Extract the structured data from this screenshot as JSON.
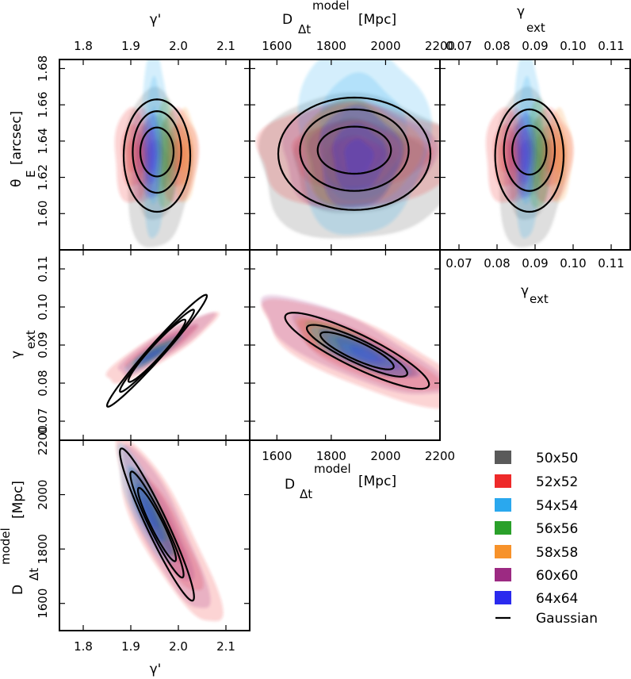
{
  "chart_data": {
    "type": "corner-contour",
    "parameters": [
      {
        "key": "gp",
        "label": "γ'",
        "ticks": [
          1.8,
          1.9,
          2.0,
          2.1
        ],
        "tick_labels": [
          "1.8",
          "1.9",
          "2.0",
          "2.1"
        ],
        "range": [
          1.75,
          2.15
        ]
      },
      {
        "key": "d",
        "label_main": "D",
        "label_sup": "model",
        "label_sub": "Δt",
        "label_unit": "[Mpc]",
        "ticks": [
          1600,
          1800,
          2000,
          2200
        ],
        "tick_labels": [
          "1600",
          "1800",
          "2000",
          "2200"
        ],
        "range": [
          1500,
          2200
        ]
      },
      {
        "key": "gx",
        "label_main": "γ",
        "label_sub": "ext",
        "ticks": [
          0.07,
          0.08,
          0.09,
          0.1,
          0.11
        ],
        "tick_labels": [
          "0.07",
          "0.08",
          "0.09",
          "0.10",
          "0.11"
        ],
        "range": [
          0.065,
          0.115
        ]
      },
      {
        "key": "th",
        "label_main": "θ",
        "label_sub": "E",
        "label_unit": "[arcsec]",
        "ticks": [
          1.6,
          1.62,
          1.64,
          1.66,
          1.68
        ],
        "tick_labels": [
          "1.60",
          "1.62",
          "1.64",
          "1.66",
          "1.68"
        ],
        "range": [
          1.58,
          1.685
        ]
      }
    ],
    "series": [
      {
        "name": "50x50",
        "color": "#5a5a5a"
      },
      {
        "name": "52x52",
        "color": "#ee2a2a"
      },
      {
        "name": "54x54",
        "color": "#2aa8ee"
      },
      {
        "name": "56x56",
        "color": "#2aa02a"
      },
      {
        "name": "58x58",
        "color": "#f7922a"
      },
      {
        "name": "60x60",
        "color": "#9c2a82"
      },
      {
        "name": "64x64",
        "color": "#2a2aee"
      }
    ],
    "gaussian": {
      "name": "Gaussian",
      "color": "#000000"
    },
    "panels": [
      {
        "x": "gp",
        "y": "th",
        "col": 0,
        "row": 0,
        "blobs": [
          {
            "s": 0,
            "cx": 1.955,
            "cy": 1.625,
            "sx": 0.035,
            "sy": 0.022,
            "r": 0
          },
          {
            "s": 1,
            "cx": 1.905,
            "cy": 1.632,
            "sx": 0.02,
            "sy": 0.013,
            "r": 0
          },
          {
            "s": 1,
            "cx": 2.0,
            "cy": 1.632,
            "sx": 0.02,
            "sy": 0.013,
            "r": 0
          },
          {
            "s": 2,
            "cx": 1.95,
            "cy": 1.64,
            "sx": 0.013,
            "sy": 0.027,
            "r": 0
          },
          {
            "s": 3,
            "cx": 1.975,
            "cy": 1.633,
            "sx": 0.012,
            "sy": 0.015,
            "r": 0
          },
          {
            "s": 4,
            "cx": 2.015,
            "cy": 1.632,
            "sx": 0.012,
            "sy": 0.013,
            "r": 0
          },
          {
            "s": 5,
            "cx": 1.925,
            "cy": 1.632,
            "sx": 0.013,
            "sy": 0.013,
            "r": 0
          },
          {
            "s": 6,
            "cx": 1.945,
            "cy": 1.632,
            "sx": 0.01,
            "sy": 0.012,
            "r": 0
          }
        ],
        "ellipses": [
          {
            "cx": 1.955,
            "cy": 1.634,
            "sx": 0.035,
            "sy": 0.0135,
            "r": 0
          },
          {
            "cx": 1.955,
            "cy": 1.634,
            "sx": 0.051,
            "sy": 0.0225,
            "r": 0
          },
          {
            "cx": 1.955,
            "cy": 1.632,
            "sx": 0.07,
            "sy": 0.031,
            "r": 0
          }
        ]
      },
      {
        "x": "d",
        "y": "th",
        "col": 1,
        "row": 0,
        "blobs": [
          {
            "s": 0,
            "cx": 1900,
            "cy": 1.626,
            "sx": 190,
            "sy": 0.02,
            "r": 0
          },
          {
            "s": 1,
            "cx": 1900,
            "cy": 1.632,
            "sx": 195,
            "sy": 0.014,
            "r": 0
          },
          {
            "s": 2,
            "cx": 1910,
            "cy": 1.642,
            "sx": 120,
            "sy": 0.027,
            "r": 0
          },
          {
            "s": 3,
            "cx": 1880,
            "cy": 1.633,
            "sx": 90,
            "sy": 0.015,
            "r": 0
          },
          {
            "s": 4,
            "cx": 1900,
            "cy": 1.633,
            "sx": 110,
            "sy": 0.014,
            "r": 0
          },
          {
            "s": 5,
            "cx": 1890,
            "cy": 1.632,
            "sx": 140,
            "sy": 0.015,
            "r": 0
          },
          {
            "s": 6,
            "cx": 1900,
            "cy": 1.631,
            "sx": 75,
            "sy": 0.014,
            "r": 0
          }
        ],
        "ellipses": [
          {
            "cx": 1885,
            "cy": 1.635,
            "sx": 135,
            "sy": 0.013,
            "r": 0
          },
          {
            "cx": 1885,
            "cy": 1.635,
            "sx": 200,
            "sy": 0.0225,
            "r": 0
          },
          {
            "cx": 1885,
            "cy": 1.633,
            "sx": 280,
            "sy": 0.031,
            "r": 0
          }
        ]
      },
      {
        "x": "gx",
        "y": "th",
        "col": 2,
        "row": 0,
        "blobs": [
          {
            "s": 0,
            "cx": 0.0885,
            "cy": 1.625,
            "sx": 0.0045,
            "sy": 0.022,
            "r": 0
          },
          {
            "s": 1,
            "cx": 0.0825,
            "cy": 1.632,
            "sx": 0.0028,
            "sy": 0.013,
            "r": 0
          },
          {
            "s": 1,
            "cx": 0.094,
            "cy": 1.632,
            "sx": 0.0028,
            "sy": 0.013,
            "r": 0
          },
          {
            "s": 2,
            "cx": 0.088,
            "cy": 1.64,
            "sx": 0.0018,
            "sy": 0.027,
            "r": 0
          },
          {
            "s": 3,
            "cx": 0.091,
            "cy": 1.633,
            "sx": 0.0016,
            "sy": 0.015,
            "r": 0
          },
          {
            "s": 4,
            "cx": 0.0965,
            "cy": 1.632,
            "sx": 0.0016,
            "sy": 0.013,
            "r": 0
          },
          {
            "s": 5,
            "cx": 0.085,
            "cy": 1.632,
            "sx": 0.0018,
            "sy": 0.013,
            "r": 0
          },
          {
            "s": 6,
            "cx": 0.0875,
            "cy": 1.632,
            "sx": 0.0013,
            "sy": 0.012,
            "r": 0
          }
        ],
        "ellipses": [
          {
            "cx": 0.0885,
            "cy": 1.635,
            "sx": 0.0045,
            "sy": 0.0135,
            "r": 0
          },
          {
            "cx": 0.0885,
            "cy": 1.635,
            "sx": 0.0067,
            "sy": 0.0225,
            "r": 0
          },
          {
            "cx": 0.0885,
            "cy": 1.632,
            "sx": 0.009,
            "sy": 0.031,
            "r": 0
          }
        ]
      },
      {
        "x": "gp",
        "y": "gx",
        "col": 0,
        "row": 1,
        "blobs": [
          {
            "s": 1,
            "cx": 1.96,
            "cy": 0.089,
            "sx": 0.058,
            "sy": 0.0045,
            "r": 0.9
          },
          {
            "s": 5,
            "cx": 1.97,
            "cy": 0.09,
            "sx": 0.05,
            "sy": 0.004,
            "r": 0.9
          },
          {
            "s": 2,
            "cx": 1.945,
            "cy": 0.0875,
            "sx": 0.03,
            "sy": 0.0025,
            "r": 0.9
          },
          {
            "s": 3,
            "cx": 1.95,
            "cy": 0.088,
            "sx": 0.025,
            "sy": 0.002,
            "r": 0.9
          },
          {
            "s": 6,
            "cx": 1.945,
            "cy": 0.0875,
            "sx": 0.02,
            "sy": 0.0016,
            "r": 0.9
          }
        ],
        "ellipses": [
          {
            "cx": 1.955,
            "cy": 0.0885,
            "sx": 0.06,
            "sy": 0.0082,
            "r": 0.96
          },
          {
            "cx": 1.955,
            "cy": 0.0885,
            "sx": 0.078,
            "sy": 0.0108,
            "r": 0.975
          },
          {
            "cx": 1.955,
            "cy": 0.0885,
            "sx": 0.105,
            "sy": 0.0147,
            "r": 0.98
          }
        ]
      },
      {
        "x": "d",
        "y": "gx",
        "col": 1,
        "row": 1,
        "blobs": [
          {
            "s": 1,
            "cx": 1930,
            "cy": 0.087,
            "sx": 200,
            "sy": 0.0072,
            "r": -0.8
          },
          {
            "s": 5,
            "cx": 1870,
            "cy": 0.0895,
            "sx": 170,
            "sy": 0.0065,
            "r": -0.8
          },
          {
            "s": 4,
            "cx": 1880,
            "cy": 0.089,
            "sx": 110,
            "sy": 0.004,
            "r": -0.8
          },
          {
            "s": 3,
            "cx": 1860,
            "cy": 0.09,
            "sx": 80,
            "sy": 0.003,
            "r": -0.8
          },
          {
            "s": 2,
            "cx": 1900,
            "cy": 0.088,
            "sx": 90,
            "sy": 0.0032,
            "r": -0.8
          },
          {
            "s": 6,
            "cx": 1930,
            "cy": 0.0875,
            "sx": 90,
            "sy": 0.0032,
            "r": -0.8
          }
        ],
        "ellipses": [
          {
            "cx": 1895,
            "cy": 0.0885,
            "sx": 135,
            "sy": 0.0049,
            "r": -0.85
          },
          {
            "cx": 1895,
            "cy": 0.0885,
            "sx": 185,
            "sy": 0.0068,
            "r": -0.87
          },
          {
            "cx": 1895,
            "cy": 0.0885,
            "sx": 265,
            "sy": 0.01,
            "r": -0.88
          }
        ]
      },
      {
        "x": "gp",
        "y": "d",
        "col": 0,
        "row": 2,
        "blobs": [
          {
            "s": 1,
            "cx": 1.975,
            "cy": 1860,
            "sx": 0.055,
            "sy": 170,
            "r": -0.85
          },
          {
            "s": 5,
            "cx": 1.97,
            "cy": 1870,
            "sx": 0.045,
            "sy": 150,
            "r": -0.85
          },
          {
            "s": 2,
            "cx": 1.93,
            "cy": 1960,
            "sx": 0.03,
            "sy": 110,
            "r": -0.85
          },
          {
            "s": 3,
            "cx": 1.945,
            "cy": 1930,
            "sx": 0.025,
            "sy": 80,
            "r": -0.85
          },
          {
            "s": 6,
            "cx": 1.94,
            "cy": 1930,
            "sx": 0.022,
            "sy": 80,
            "r": -0.85
          }
        ],
        "ellipses": [
          {
            "cx": 1.955,
            "cy": 1890,
            "sx": 0.04,
            "sy": 135,
            "r": -0.935
          },
          {
            "cx": 1.955,
            "cy": 1890,
            "sx": 0.056,
            "sy": 195,
            "r": -0.945
          },
          {
            "cx": 1.955,
            "cy": 1890,
            "sx": 0.078,
            "sy": 280,
            "r": -0.95
          }
        ]
      }
    ],
    "legend_position": "bottom-right"
  }
}
